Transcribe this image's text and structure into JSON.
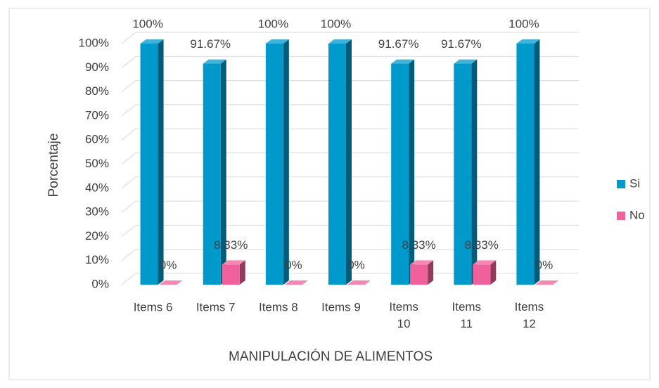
{
  "chart_data": {
    "type": "bar3d",
    "x_label": "MANIPULACIÓN DE ALIMENTOS",
    "y_label": "Porcentaje",
    "categories": [
      "Items 6",
      "Items 7",
      "Items 8",
      "Items 9",
      "Items 10",
      "Items 11",
      "Items 12"
    ],
    "series": [
      {
        "name": "Si",
        "color": "#0099cc",
        "values": [
          100,
          91.67,
          100,
          100,
          91.67,
          91.67,
          100
        ],
        "value_labels": [
          "100%",
          "91.67%",
          "100%",
          "100%",
          "91.67%",
          "91.67%",
          "100%"
        ]
      },
      {
        "name": "No",
        "color": "#f0609a",
        "values": [
          0,
          8.33,
          0,
          0,
          8.33,
          8.33,
          0
        ],
        "value_labels": [
          "0%",
          "8.33%",
          "0%",
          "0%",
          "8.33%",
          "8.33%",
          "0%"
        ]
      }
    ],
    "ylim": [
      0,
      100
    ],
    "yticks": [
      {
        "value": 0,
        "label": "0%"
      },
      {
        "value": 10,
        "label": "10%"
      },
      {
        "value": 20,
        "label": "20%"
      },
      {
        "value": 30,
        "label": "30%"
      },
      {
        "value": 40,
        "label": "40%"
      },
      {
        "value": 50,
        "label": "50%"
      },
      {
        "value": 60,
        "label": "60%"
      },
      {
        "value": 70,
        "label": "70%"
      },
      {
        "value": 80,
        "label": "80%"
      },
      {
        "value": 90,
        "label": "90%"
      },
      {
        "value": 100,
        "label": "100%"
      }
    ],
    "grid": true,
    "legend": "right"
  }
}
